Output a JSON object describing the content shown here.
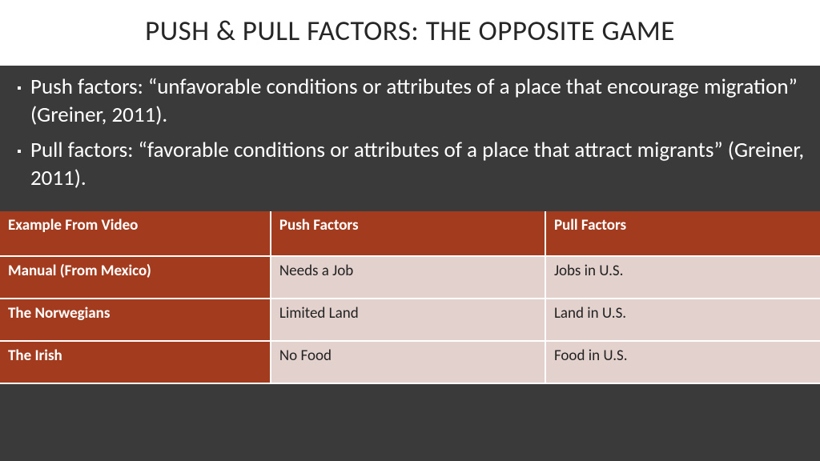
{
  "title": "PUSH & PULL FACTORS: THE OPPOSITE GAME",
  "bullets": [
    "Push factors: “unfavorable conditions or attributes of a place that encourage migration” (Greiner, 2011).",
    "Pull factors: “favorable conditions or attributes of a place that attract migrants” (Greiner, 2011)."
  ],
  "table": {
    "columns": [
      "Example From Video",
      "Push Factors",
      "Pull Factors"
    ],
    "rows": [
      [
        "Manual (From Mexico)",
        "Needs a Job",
        "Jobs in U.S."
      ],
      [
        "The Norwegians",
        "Limited Land",
        "Land in U.S."
      ],
      [
        "The Irish",
        "No Food",
        "Food in U.S."
      ]
    ],
    "header_bg": "#a33b1f",
    "rowhead_bg": "#a33b1f",
    "cell_bg": "#e3d1cd",
    "border_color": "#ffffff"
  },
  "colors": {
    "slide_bg": "#3a3a3a",
    "title_bg": "#ffffff",
    "title_text": "#262626",
    "bullet_text": "#ffffff"
  }
}
